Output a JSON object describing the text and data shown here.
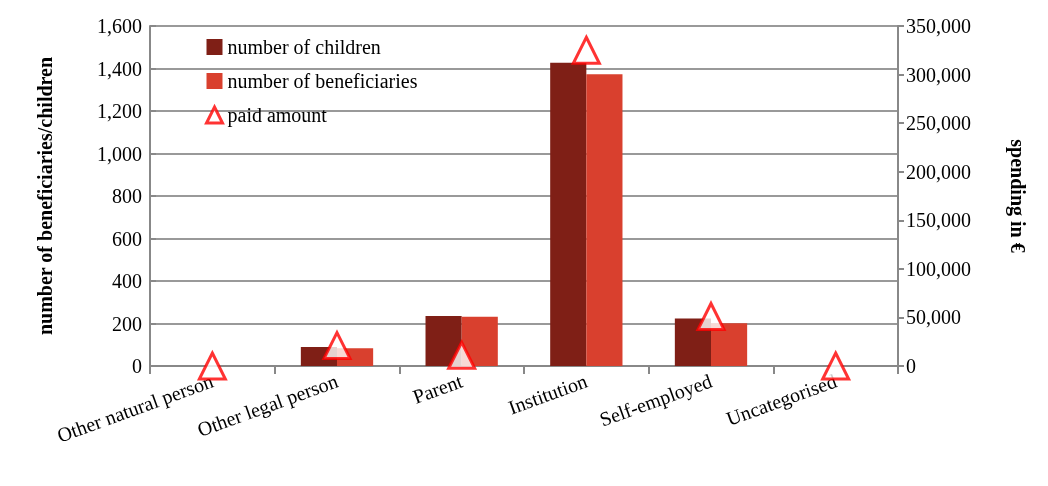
{
  "chart_data": {
    "type": "bar",
    "ylabel": "number of beneficiaries/children",
    "y2label": "spending in €",
    "categories": [
      "Other natural person",
      "Other legal person",
      "Parent",
      "Institution",
      "Self-employed",
      "Uncategorised"
    ],
    "series": [
      {
        "name": "number of children",
        "color": "#7f1f16",
        "values": [
          0,
          89,
          235,
          1427,
          224,
          0
        ]
      },
      {
        "name": "number of beneficiaries",
        "color": "#d9402e",
        "values": [
          0,
          83,
          232,
          1373,
          201,
          0
        ]
      },
      {
        "name": "paid amount",
        "type": "scatter",
        "axis": "y2",
        "color": "#ff0000",
        "marker": "triangle",
        "values": [
          0,
          21000,
          11000,
          325000,
          51000,
          0
        ]
      }
    ],
    "ylim": [
      0,
      1600
    ],
    "yticks": [
      0,
      200,
      400,
      600,
      800,
      {
        "value": 1000,
        "label": "1,000"
      },
      {
        "value": 1200,
        "label": "1,200"
      },
      {
        "value": 1400,
        "label": "1,400"
      },
      {
        "value": 1600,
        "label": "1,600"
      }
    ],
    "y2lim": [
      0,
      350000
    ],
    "y2ticks": [
      0,
      {
        "value": 50000,
        "label": "50,000"
      },
      {
        "value": 100000,
        "label": "100,000"
      },
      {
        "value": 150000,
        "label": "150,000"
      },
      {
        "value": 200000,
        "label": "200,000"
      },
      {
        "value": 250000,
        "label": "250,000"
      },
      {
        "value": 300000,
        "label": "300,000"
      },
      {
        "value": 350000,
        "label": "350,000"
      }
    ],
    "grid": "y",
    "legend": "top left"
  }
}
